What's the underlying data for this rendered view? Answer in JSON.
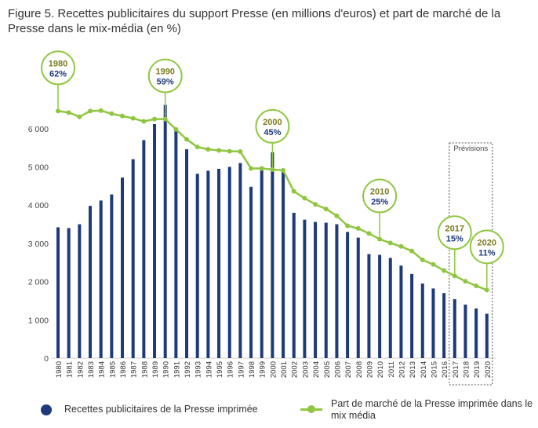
{
  "title": "Figure 5. Recettes publicitaires du support Presse (en millions d'euros) et part de marché de la Presse dans le mix-média (en %)",
  "colors": {
    "bar": "#1f3a7a",
    "line": "#8fc640",
    "bubble_text_year": "#7a7a20",
    "bubble_text_pct": "#1f3a7a"
  },
  "chart_data": {
    "type": "bar",
    "categories": [
      "1980",
      "1981",
      "1982",
      "1983",
      "1984",
      "1985",
      "1986",
      "1987",
      "1988",
      "1989",
      "1990",
      "1991",
      "1992",
      "1993",
      "1994",
      "1995",
      "1996",
      "1997",
      "1998",
      "1999",
      "2000",
      "2001",
      "2002",
      "2003",
      "2004",
      "2005",
      "2006",
      "2007",
      "2008",
      "2009",
      "2010",
      "2011",
      "2012",
      "2013",
      "2014",
      "2015",
      "2016",
      "2017",
      "2018",
      "2019",
      "2020"
    ],
    "series": [
      {
        "name": "Recettes publicitaires de la Presse imprimée",
        "type": "bar",
        "values": [
          3420,
          3400,
          3500,
          3980,
          4120,
          4280,
          4720,
          5200,
          5700,
          6120,
          6620,
          5950,
          5460,
          4820,
          4900,
          4950,
          5000,
          5100,
          4480,
          4980,
          5380,
          4880,
          3800,
          3620,
          3560,
          3540,
          3500,
          3300,
          3150,
          2720,
          2700,
          2620,
          2420,
          2200,
          1950,
          1820,
          1700,
          1540,
          1400,
          1300,
          1160
        ]
      },
      {
        "name": "Part de marché de la Presse imprimée dans le mix média",
        "type": "line",
        "values": [
          6460,
          6420,
          6310,
          6460,
          6470,
          6390,
          6330,
          6270,
          6190,
          6250,
          6250,
          5980,
          5720,
          5520,
          5460,
          5430,
          5410,
          5400,
          4960,
          4960,
          4930,
          4910,
          4360,
          4180,
          4020,
          3900,
          3720,
          3460,
          3390,
          3260,
          3110,
          3010,
          2920,
          2800,
          2570,
          2450,
          2290,
          2150,
          2010,
          1890,
          1780
        ]
      }
    ],
    "yticks": [
      "0",
      "1 000",
      "2 000",
      "3 000",
      "4 000",
      "5 000",
      "6 000"
    ],
    "ylim": [
      0,
      7000
    ],
    "annotations": [
      {
        "year": "1980",
        "pct": "62%",
        "index": 0
      },
      {
        "year": "1990",
        "pct": "59%",
        "index": 10
      },
      {
        "year": "2000",
        "pct": "45%",
        "index": 20
      },
      {
        "year": "2010",
        "pct": "25%",
        "index": 30
      },
      {
        "year": "2017",
        "pct": "15%",
        "index": 37
      },
      {
        "year": "2020",
        "pct": "11%",
        "index": 40
      }
    ],
    "forecast_label": "Prévisions",
    "forecast_range": [
      "2017",
      "2020"
    ]
  },
  "legend": {
    "bars": "Recettes publicitaires de la Presse imprimée",
    "line": "Part de marché de la Presse imprimée dans le mix média"
  }
}
